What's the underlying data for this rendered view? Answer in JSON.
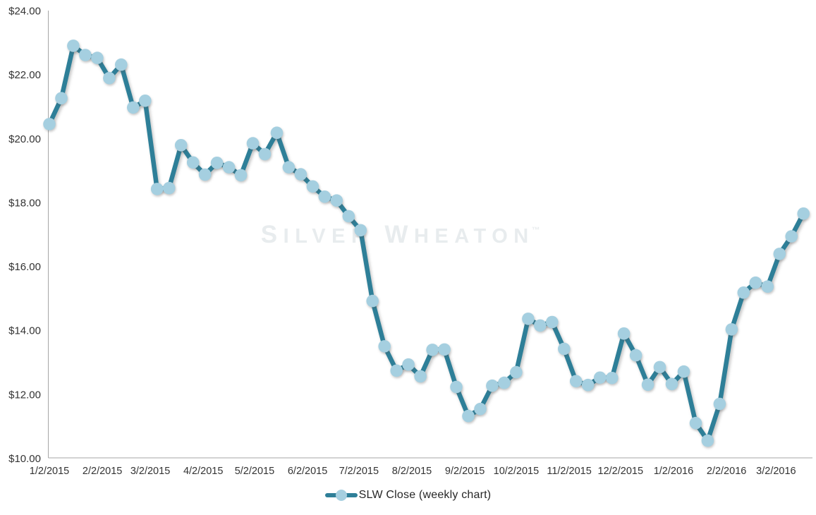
{
  "chart_data": {
    "type": "line",
    "title": "",
    "watermark": {
      "word1": "Silver",
      "word2": "Wheaton",
      "tm": "™"
    },
    "x_axis": {
      "type": "date",
      "tick_labels": [
        "1/2/2015",
        "2/2/2015",
        "3/2/2015",
        "4/2/2015",
        "5/2/2015",
        "6/2/2015",
        "7/2/2015",
        "8/2/2015",
        "9/2/2015",
        "10/2/2015",
        "11/2/2015",
        "12/2/2015",
        "1/2/2016",
        "2/2/2016",
        "3/2/2016"
      ],
      "grid": false
    },
    "y_axis": {
      "tick_labels": [
        "$24.00",
        "$22.00",
        "$20.00",
        "$18.00",
        "$16.00",
        "$14.00",
        "$12.00",
        "$10.00"
      ],
      "min": 10,
      "max": 24,
      "step": 2,
      "grid": false
    },
    "legend_position": "bottom-center",
    "series": [
      {
        "name": "SLW Close (weekly chart)",
        "frequency": "weekly",
        "start_date": "1/2/2015",
        "values": [
          20.46,
          21.27,
          22.91,
          22.62,
          22.53,
          21.9,
          22.32,
          20.98,
          21.19,
          18.43,
          18.46,
          19.8,
          19.26,
          18.88,
          19.25,
          19.11,
          18.86,
          19.86,
          19.52,
          20.19,
          19.11,
          18.89,
          18.51,
          18.19,
          18.07,
          17.58,
          17.14,
          14.93,
          13.51,
          12.75,
          12.94,
          12.57,
          13.4,
          13.41,
          12.24,
          11.33,
          11.55,
          12.28,
          12.37,
          12.7,
          14.37,
          14.16,
          14.27,
          13.43,
          12.42,
          12.3,
          12.53,
          12.52,
          13.91,
          13.23,
          12.31,
          12.86,
          12.33,
          12.72,
          11.11,
          10.56,
          11.71,
          14.04,
          15.19,
          15.5,
          15.38,
          16.4,
          16.95,
          17.66
        ]
      }
    ]
  },
  "colors": {
    "line": "#2E7F98",
    "marker": "#A5CFE0",
    "axis_line": "#A6A6A6",
    "axis_text": "#333333",
    "legend_text": "#262626",
    "watermark": "#E8ECEE",
    "background": "#FFFFFF"
  }
}
